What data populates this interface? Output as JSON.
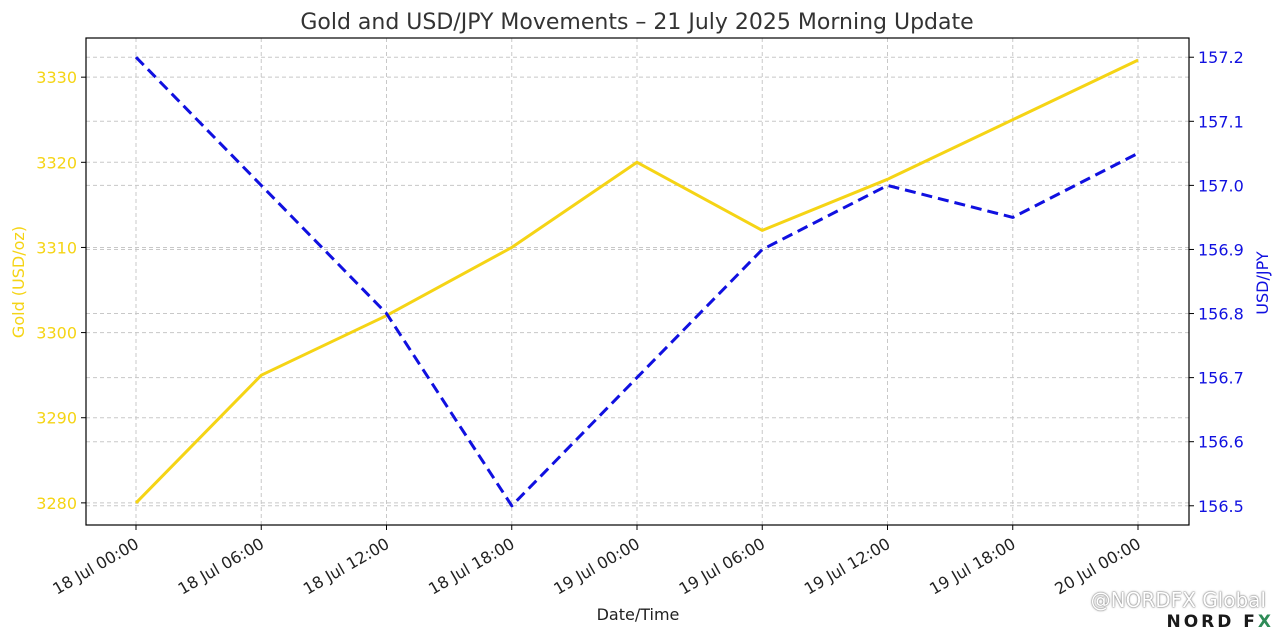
{
  "chart_data": {
    "type": "line",
    "title": "Gold and USD/JPY Movements – 21 July 2025 Morning Update",
    "xlabel": "Date/Time",
    "ylabel_left": "Gold (USD/oz)",
    "ylabel_right": "USD/JPY",
    "categories": [
      "18 Jul 00:00",
      "18 Jul 06:00",
      "18 Jul 12:00",
      "18 Jul 18:00",
      "19 Jul 00:00",
      "19 Jul 06:00",
      "19 Jul 12:00",
      "19 Jul 18:00",
      "20 Jul 00:00"
    ],
    "series": [
      {
        "values": [
          3280,
          3295,
          3302,
          3310,
          3320,
          3312,
          3318,
          3325,
          3332
        ],
        "axis": "left",
        "color": "#f5d415",
        "style": "solid"
      },
      {
        "values": [
          157.2,
          157.0,
          156.8,
          156.5,
          156.7,
          156.9,
          157.0,
          156.95,
          157.05
        ],
        "axis": "right",
        "color": "#1010e0",
        "style": "dashed"
      }
    ],
    "ylim_left": [
      3277.4,
      3334.6
    ],
    "ylim_right": [
      156.47,
      157.23
    ],
    "yticks_left": [
      "3280",
      "3290",
      "3300",
      "3310",
      "3320",
      "3330"
    ],
    "yticks_right": [
      "156.5",
      "156.6",
      "156.7",
      "156.8",
      "156.9",
      "157.0",
      "157.1",
      "157.2"
    ],
    "grid": true
  },
  "watermark": "@NORDFX Global",
  "logo": {
    "main": "NORD F",
    "accent": "X"
  }
}
